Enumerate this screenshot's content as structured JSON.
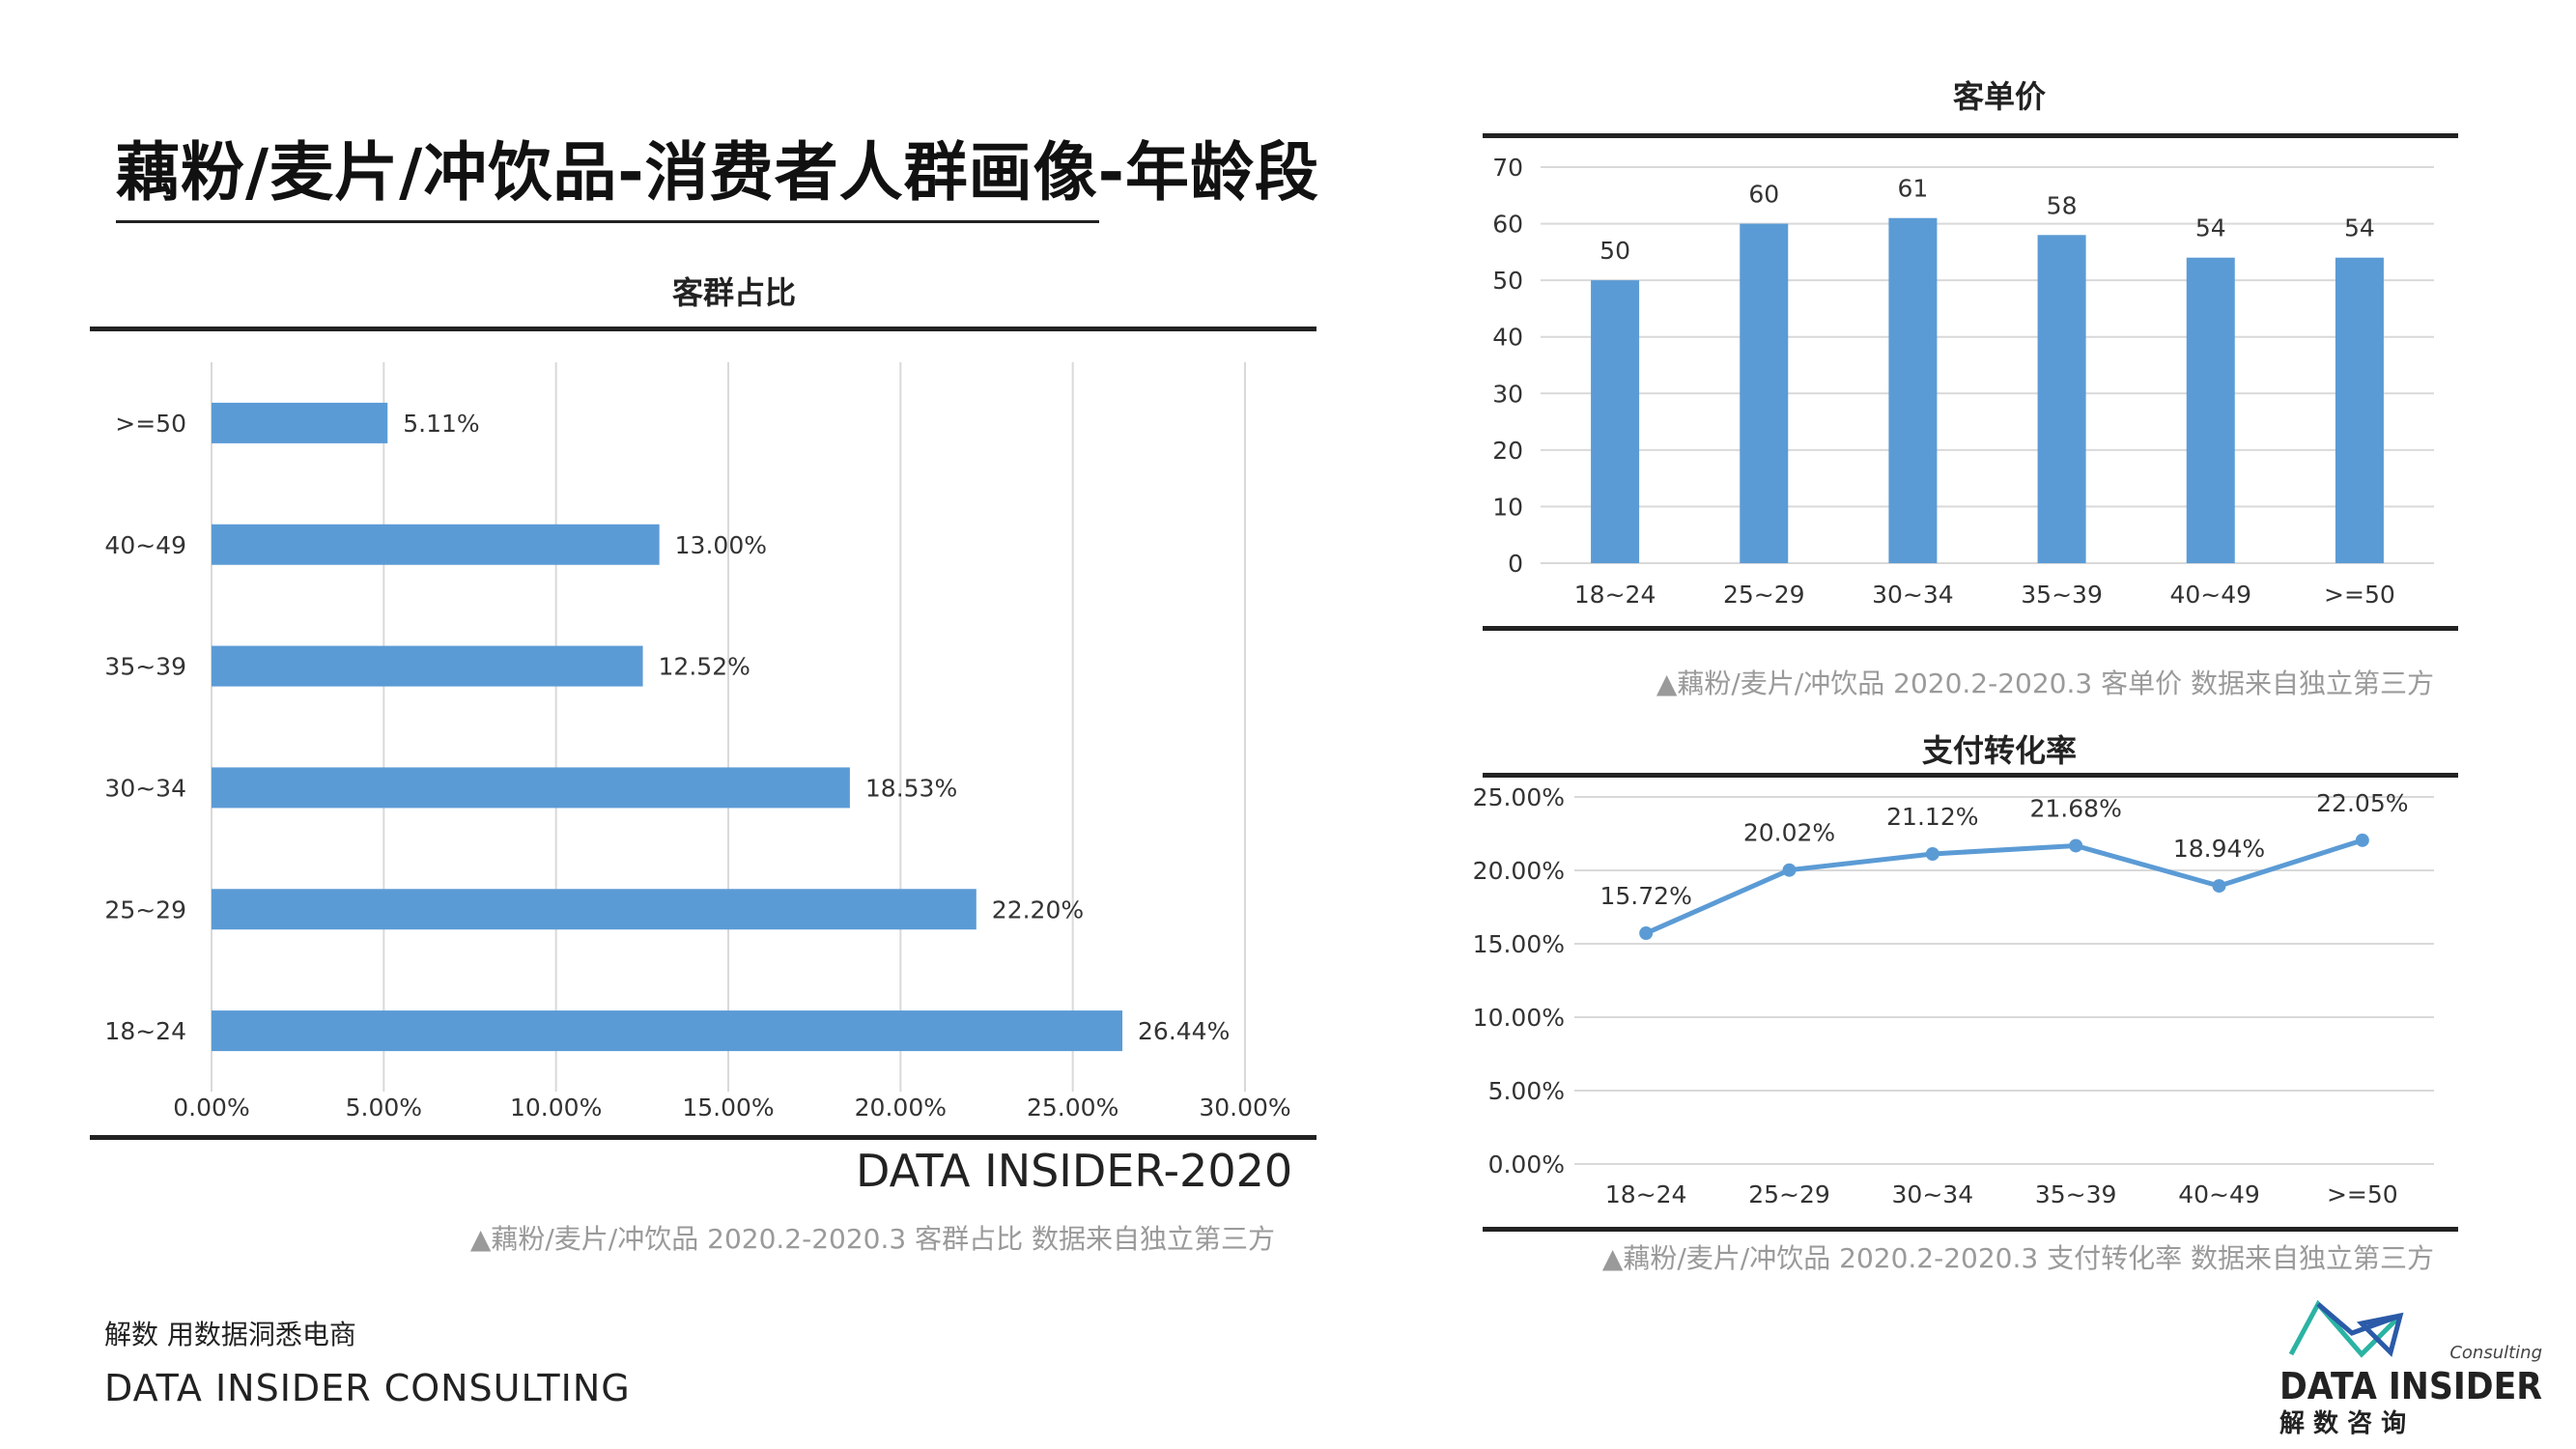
{
  "title": "藕粉/麦片/冲饮品-消费者人群画像-年龄段",
  "colors": {
    "bar": "#5b9bd5",
    "line": "#5b9bd5",
    "grid": "#d9d9d9",
    "axis": "#222222"
  },
  "chart_data": [
    {
      "type": "bar",
      "orientation": "horizontal",
      "title": "客群占比",
      "categories": [
        ">=50",
        "40~49",
        "35~39",
        "30~34",
        "25~29",
        "18~24"
      ],
      "values": [
        5.11,
        13.0,
        12.52,
        18.53,
        22.2,
        26.44
      ],
      "value_labels": [
        "5.11%",
        "13.00%",
        "12.52%",
        "18.53%",
        "22.20%",
        "26.44%"
      ],
      "xlim": [
        0,
        30
      ],
      "x_ticks": [
        0,
        5,
        10,
        15,
        20,
        25,
        30
      ],
      "x_tick_labels": [
        "0.00%",
        "5.00%",
        "10.00%",
        "15.00%",
        "20.00%",
        "25.00%",
        "30.00%"
      ],
      "grid": true,
      "caption": "▲藕粉/麦片/冲饮品 2020.2-2020.3  客群占比 数据来自独立第三方"
    },
    {
      "type": "bar",
      "title": "客单价",
      "categories": [
        "18~24",
        "25~29",
        "30~34",
        "35~39",
        "40~49",
        ">=50"
      ],
      "values": [
        50,
        60,
        61,
        58,
        54,
        54
      ],
      "ylim": [
        0,
        70
      ],
      "y_ticks": [
        0,
        10,
        20,
        30,
        40,
        50,
        60,
        70
      ],
      "grid": true,
      "caption": "▲藕粉/麦片/冲饮品 2020.2-2020.3 客单价 数据来自独立第三方"
    },
    {
      "type": "line",
      "title": "支付转化率",
      "categories": [
        "18~24",
        "25~29",
        "30~34",
        "35~39",
        "40~49",
        ">=50"
      ],
      "values": [
        15.72,
        20.02,
        21.12,
        21.68,
        18.94,
        22.05
      ],
      "value_labels": [
        "15.72%",
        "20.02%",
        "21.12%",
        "21.68%",
        "18.94%",
        "22.05%"
      ],
      "ylim": [
        0,
        25
      ],
      "y_ticks": [
        0,
        5,
        10,
        15,
        20,
        25
      ],
      "y_tick_labels": [
        "0.00%",
        "5.00%",
        "10.00%",
        "15.00%",
        "20.00%",
        "25.00%"
      ],
      "grid": true,
      "caption": "▲藕粉/麦片/冲饮品 2020.2-2020.3 支付转化率 数据来自独立第三方"
    }
  ],
  "watermark": "DATA INSIDER-2020",
  "footer": {
    "tagline_cn": "解数 用数据洞悉电商",
    "tagline_en": "DATA INSIDER CONSULTING"
  },
  "logo": {
    "consulting": "Consulting",
    "brand": "DATA INSIDER",
    "brand_cn": "解 数 咨 询"
  }
}
